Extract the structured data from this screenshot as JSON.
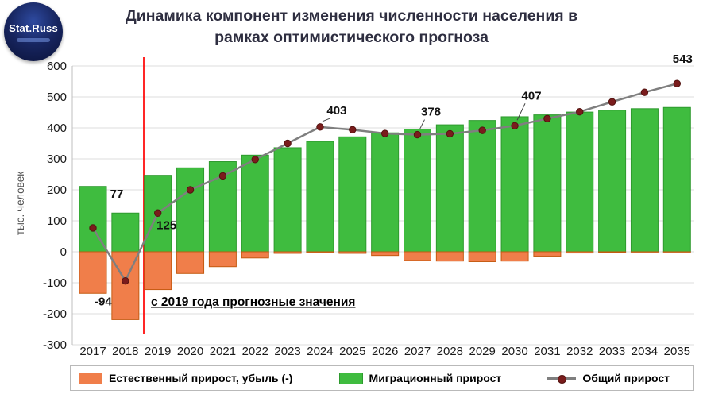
{
  "logo": {
    "text": "Stat.Russ"
  },
  "title": {
    "line1": "Динамика компонент изменения численности населения в",
    "line2": "рамках оптимистического прогноза"
  },
  "annotation": {
    "forecast_note": "с 2019 года прогнозные значения"
  },
  "legend": [
    {
      "label": "Естественный прирост, убыль (-)",
      "swatch": "orange-rect"
    },
    {
      "label": "Миграционный прирост",
      "swatch": "green-rect"
    },
    {
      "label": "Общий прирост",
      "swatch": "gray-line-with-dark-red-dot"
    }
  ],
  "colors": {
    "natural": "#F07E4A",
    "natural_border": "#C55A11",
    "migration": "#3FBC3F",
    "migration_border": "#2E9A2E",
    "total_line": "#7F7F7F",
    "total_marker": "#7A1C1C",
    "total_marker_border": "#53120F",
    "forecast_line": "#FF0000",
    "grid": "#DCDCDC",
    "axis": "#BFBFBF",
    "title_text": "#2E2E40"
  },
  "chart_data": {
    "type": "bar",
    "subtype": "bars-with-line-overlay",
    "title": "Динамика компонент изменения численности населения в рамках оптимистического прогноза",
    "xlabel": "",
    "ylabel": "тыс. человек",
    "ylim": [
      -300,
      600
    ],
    "ytick_step": 100,
    "grid": true,
    "legend_position": "bottom",
    "forecast_divider_after": "2018",
    "categories": [
      "2017",
      "2018",
      "2019",
      "2020",
      "2021",
      "2022",
      "2023",
      "2024",
      "2025",
      "2026",
      "2027",
      "2028",
      "2029",
      "2030",
      "2031",
      "2032",
      "2033",
      "2034",
      "2035"
    ],
    "series": [
      {
        "name": "Естественный прирост, убыль (-)",
        "type": "bar",
        "values": [
          -134,
          -219,
          -122,
          -70,
          -48,
          -20,
          -5,
          -3,
          -5,
          -12,
          -28,
          -30,
          -32,
          -30,
          -14,
          -4,
          -2,
          -1,
          -1
        ]
      },
      {
        "name": "Миграционный прирост",
        "type": "bar",
        "values": [
          211,
          125,
          247,
          271,
          291,
          312,
          336,
          356,
          371,
          384,
          396,
          410,
          424,
          436,
          442,
          451,
          457,
          462,
          466
        ]
      },
      {
        "name": "Общий прирост",
        "type": "line",
        "values": [
          77,
          -94,
          125,
          200,
          245,
          298,
          350,
          403,
          394,
          382,
          378,
          381,
          392,
          407,
          430,
          452,
          484,
          515,
          543
        ]
      }
    ],
    "point_labels": [
      {
        "year": "2017",
        "text": "77"
      },
      {
        "year": "2018",
        "text": "-94"
      },
      {
        "year": "2019",
        "text": "125"
      },
      {
        "year": "2024",
        "text": "403"
      },
      {
        "year": "2027",
        "text": "378"
      },
      {
        "year": "2030",
        "text": "407"
      },
      {
        "year": "2035",
        "text": "543"
      }
    ]
  }
}
